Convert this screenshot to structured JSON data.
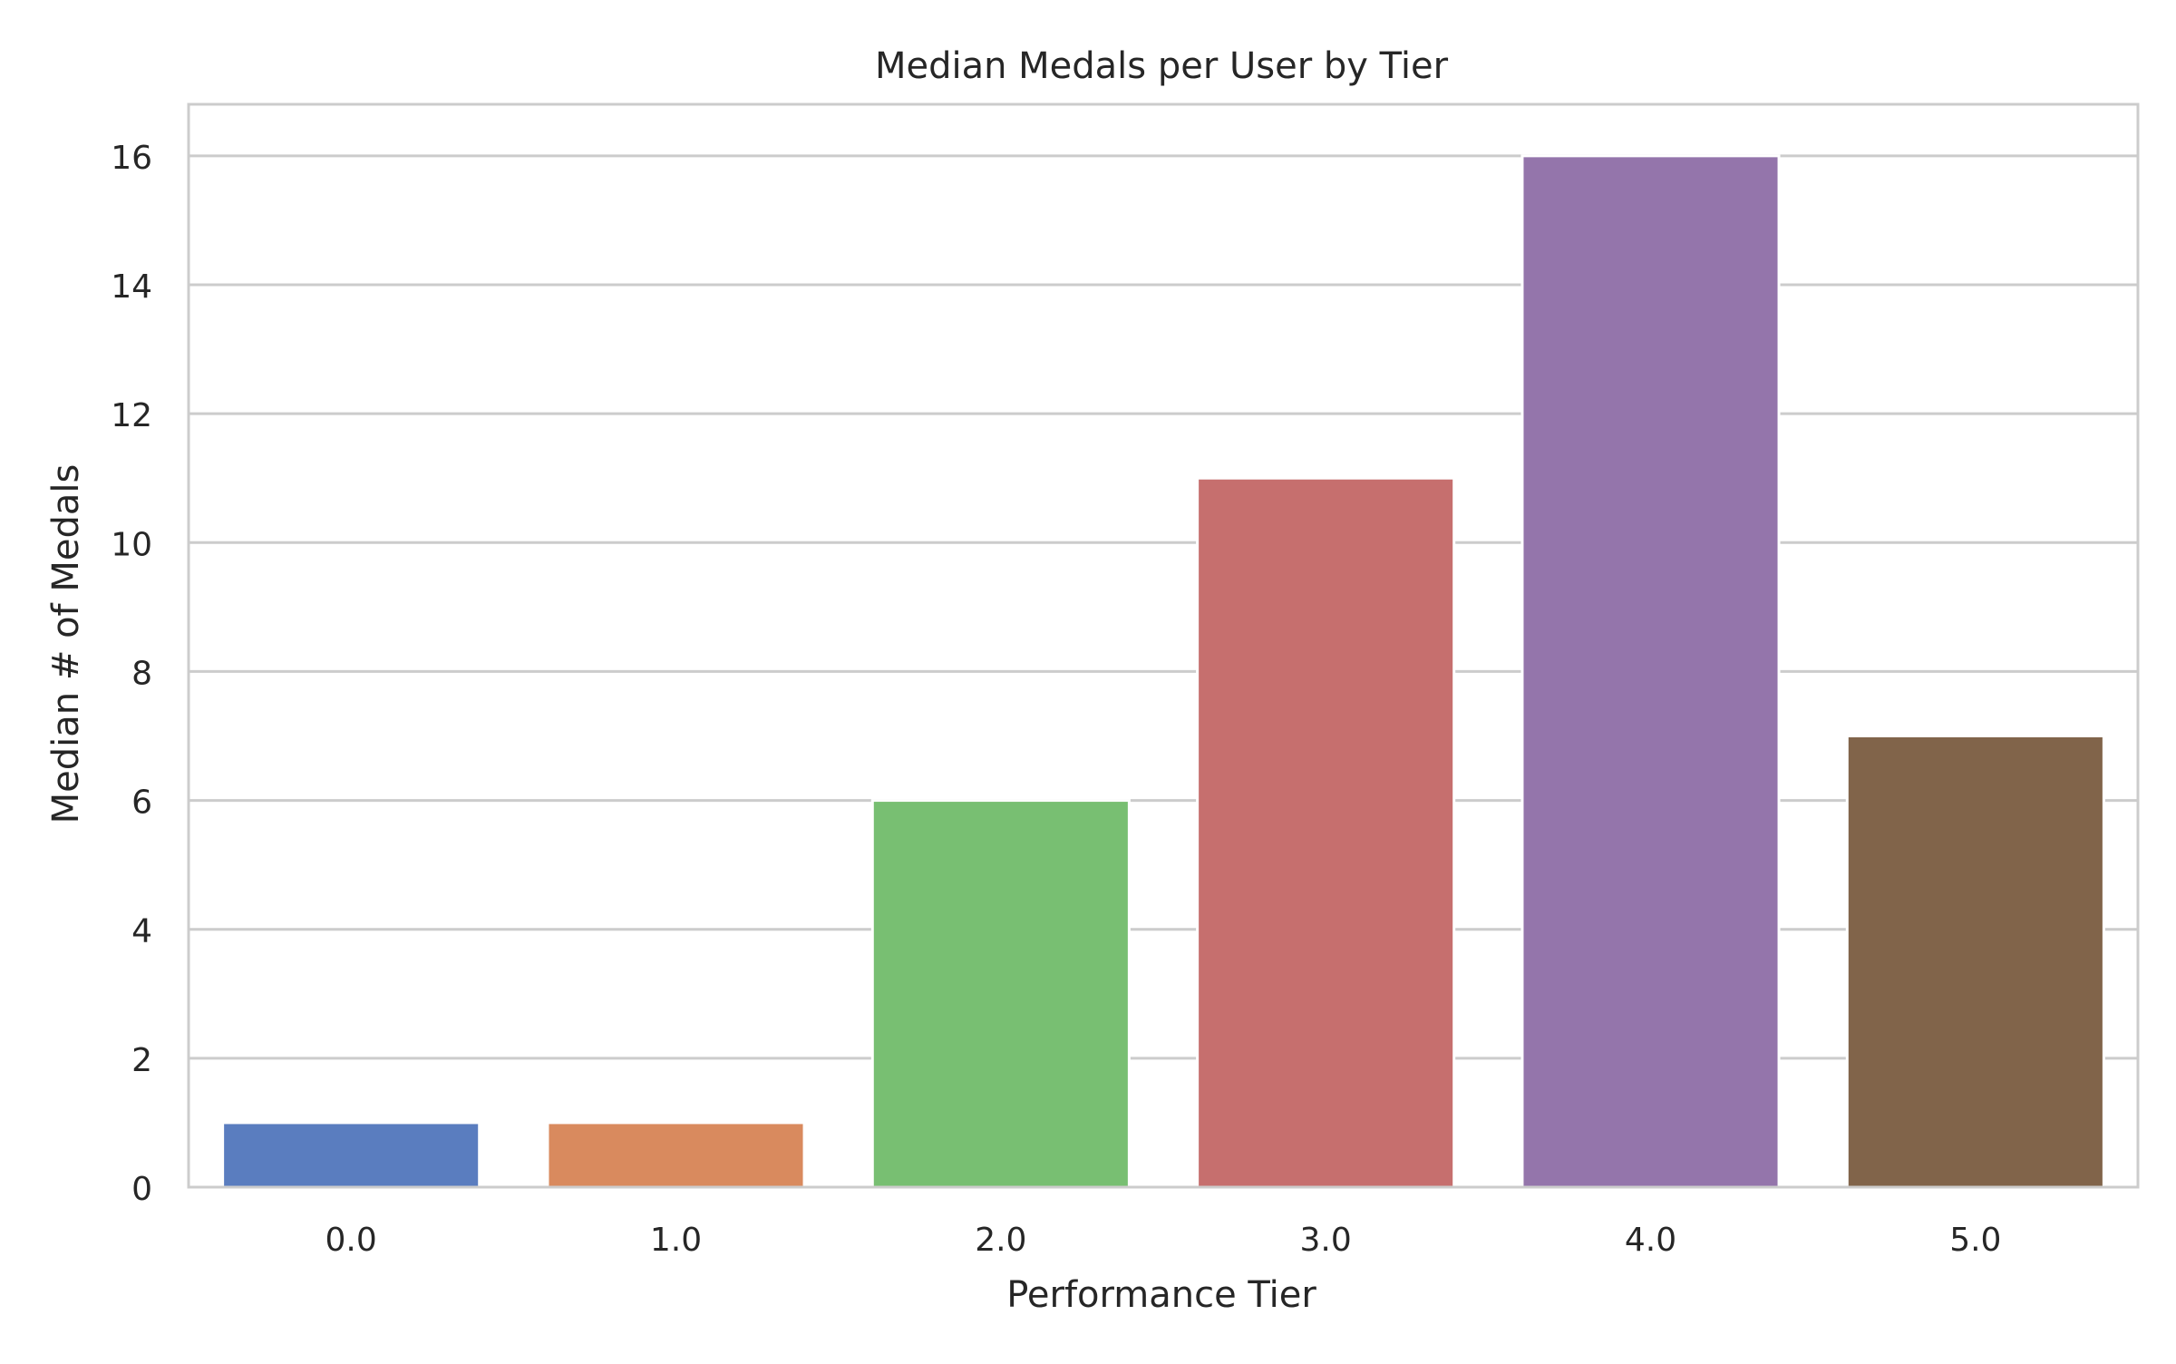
{
  "chart_data": {
    "type": "bar",
    "title": "Median Medals per User by Tier",
    "xlabel": "Performance Tier",
    "ylabel": "Median # of Medals",
    "categories": [
      "0.0",
      "1.0",
      "2.0",
      "3.0",
      "4.0",
      "5.0"
    ],
    "values": [
      1,
      1,
      6,
      11,
      16,
      7
    ],
    "colors": [
      "#5a7dbf",
      "#d98a5e",
      "#78bf72",
      "#c66f6e",
      "#9475ab",
      "#81644a"
    ],
    "ylim": [
      0,
      16.8
    ],
    "yticks": [
      "0",
      "2",
      "4",
      "6",
      "8",
      "10",
      "12",
      "14",
      "16"
    ],
    "grid": true,
    "legend": "none"
  }
}
